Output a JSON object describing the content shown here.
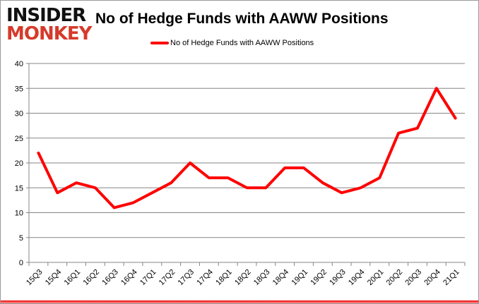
{
  "logo": {
    "line1": "INSIDER",
    "line2": "MONKEY"
  },
  "chart_data": {
    "type": "line",
    "title": "No of Hedge Funds with AAWW Positions",
    "xlabel": "",
    "ylabel": "",
    "categories": [
      "15Q3",
      "15Q4",
      "16Q1",
      "16Q2",
      "16Q3",
      "16Q4",
      "17Q1",
      "17Q2",
      "17Q3",
      "17Q4",
      "18Q1",
      "18Q2",
      "18Q3",
      "18Q4",
      "19Q1",
      "19Q2",
      "19Q3",
      "19Q4",
      "20Q1",
      "20Q2",
      "20Q3",
      "20Q4",
      "21Q1"
    ],
    "series": [
      {
        "name": "No of Hedge Funds with AAWW Positions",
        "color": "#ff0000",
        "values": [
          22,
          14,
          16,
          15,
          11,
          12,
          14,
          16,
          20,
          17,
          17,
          15,
          15,
          19,
          19,
          16,
          14,
          15,
          17,
          26,
          27,
          35,
          29
        ]
      }
    ],
    "ylim": [
      0,
      40
    ],
    "yticks": [
      0,
      5,
      10,
      15,
      20,
      25,
      30,
      35,
      40
    ],
    "grid": true,
    "legend_position": "top"
  }
}
